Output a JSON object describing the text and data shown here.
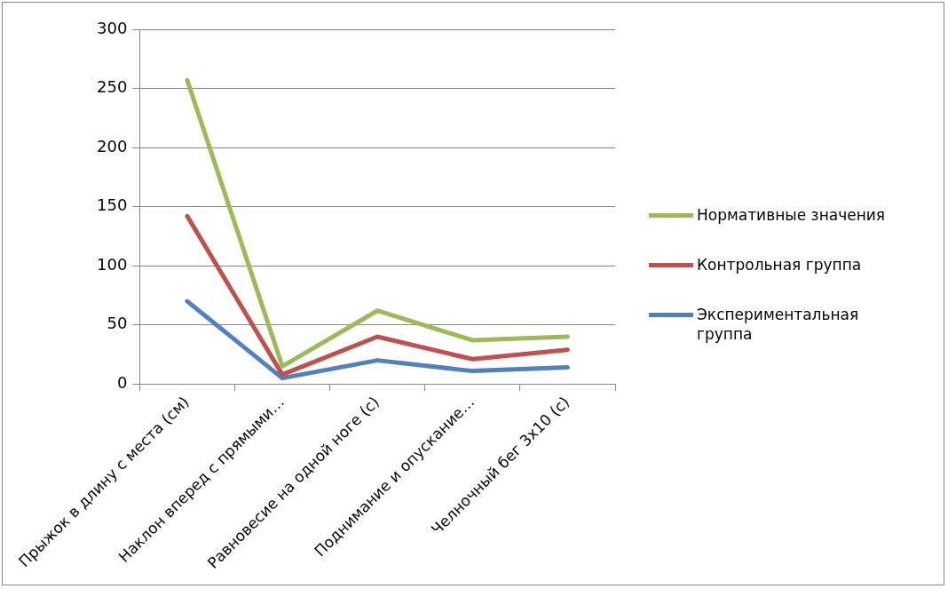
{
  "chart_data": {
    "type": "line",
    "categories": [
      "Прыжок в длину с места (см)",
      "Наклон вперед с прямыми…",
      "Равновесие на одной ноге (с)",
      "Поднимание и опускание…",
      "Челночный бег 3х10 (с)"
    ],
    "series": [
      {
        "name": "Нормативные значения",
        "color": "#9bbb59",
        "values": [
          257,
          15,
          62,
          37,
          40
        ]
      },
      {
        "name": "Контрольная группа",
        "color": "#c0504d",
        "values": [
          142,
          8,
          40,
          21,
          29
        ]
      },
      {
        "name": "Экспериментальная группа",
        "color": "#4f81bd",
        "values": [
          70,
          5,
          20,
          11,
          14
        ]
      }
    ],
    "ylim": [
      0,
      300
    ],
    "yticks": [
      0,
      50,
      100,
      150,
      200,
      250,
      300
    ],
    "grid": "y",
    "legend": "right",
    "marker": "none",
    "line_style": "solid"
  }
}
